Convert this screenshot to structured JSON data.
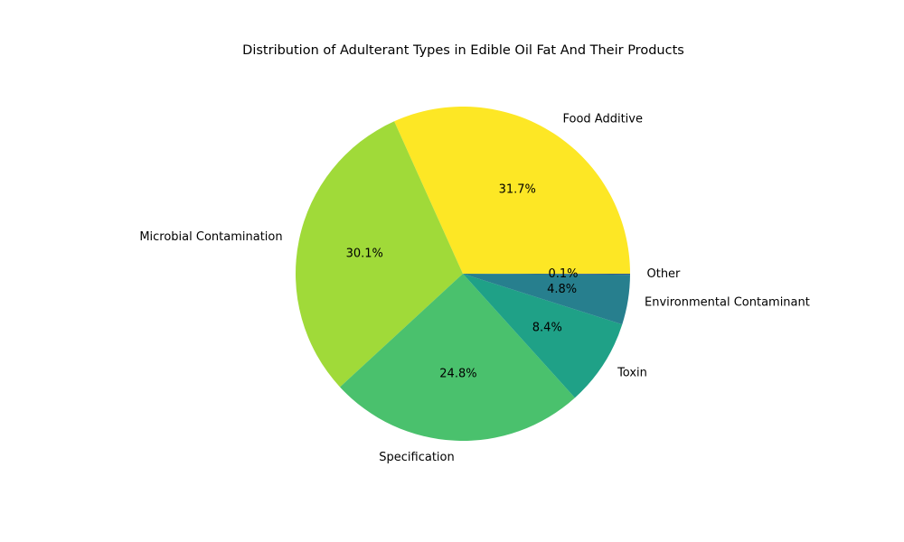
{
  "chart_data": {
    "type": "pie",
    "title": "Distribution of Adulterant Types in Edible Oil Fat And Their Products",
    "slices": [
      {
        "label": "Food Additive",
        "value": 31.7,
        "pct_label": "31.7%",
        "color": "#fde725"
      },
      {
        "label": "Microbial Contamination",
        "value": 30.1,
        "pct_label": "30.1%",
        "color": "#a0da39"
      },
      {
        "label": "Specification",
        "value": 24.8,
        "pct_label": "24.8%",
        "color": "#4ac16d"
      },
      {
        "label": "Toxin",
        "value": 8.4,
        "pct_label": "8.4%",
        "color": "#1fa187"
      },
      {
        "label": "Environmental Contaminant",
        "value": 4.8,
        "pct_label": "4.8%",
        "color": "#277f8e"
      },
      {
        "label": "Other",
        "value": 0.1,
        "pct_label": "0.1%",
        "color": "#365c8d"
      }
    ]
  }
}
